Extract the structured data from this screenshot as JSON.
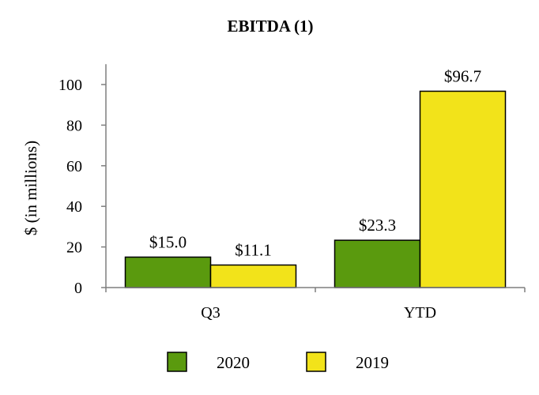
{
  "chart_data": {
    "type": "bar",
    "title": "EBITDA (1)",
    "ylabel": "$ (in millions)",
    "xlabel": "",
    "ylim": [
      0,
      110
    ],
    "yticks": [
      "0",
      "20",
      "40",
      "60",
      "80",
      "100"
    ],
    "categories": [
      "Q3",
      "YTD"
    ],
    "series": [
      {
        "name": "2020",
        "color": "#5a9a0e",
        "values": [
          15.0,
          23.3
        ],
        "labels": [
          "$15.0",
          "$23.3"
        ]
      },
      {
        "name": "2019",
        "color": "#f2e31a",
        "values": [
          11.1,
          96.7
        ],
        "labels": [
          "$11.1",
          "$96.7"
        ]
      }
    ],
    "grid": false,
    "legend_position": "bottom"
  }
}
